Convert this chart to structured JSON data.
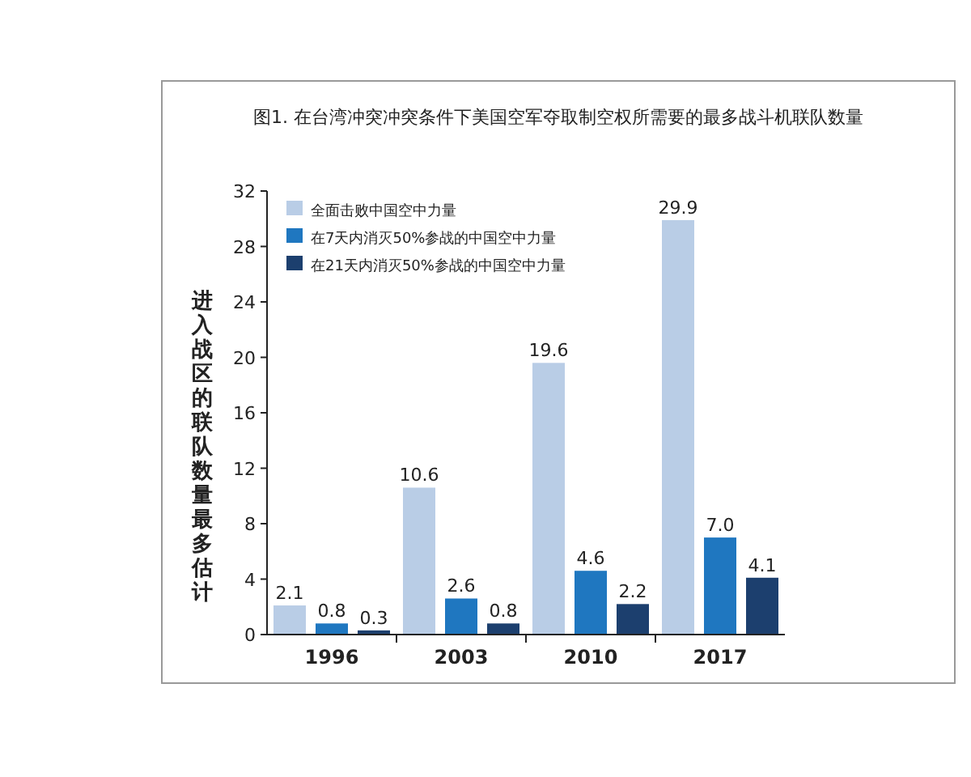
{
  "chart_data": {
    "type": "bar",
    "title": "图1. 在台湾冲突冲突条件下美国空军夺取制空权所需要的最多战斗机联队数量",
    "ylabel": "进入战区的联队数量最多估计",
    "categories": [
      "1996",
      "2003",
      "2010",
      "2017"
    ],
    "series": [
      {
        "name": "全面击败中国空中力量",
        "color": "#b9cde6",
        "values": [
          2.1,
          10.6,
          19.6,
          29.9
        ],
        "value_labels": [
          "2.1",
          "10.6",
          "19.6",
          "29.9"
        ]
      },
      {
        "name": "在7天内消灭50%参战的中国空中力量",
        "color": "#1f77c0",
        "values": [
          0.8,
          2.6,
          4.6,
          7.0
        ],
        "value_labels": [
          "0.8",
          "2.6",
          "4.6",
          "7.0"
        ]
      },
      {
        "name": "在21天内消灭50%参战的中国空中力量",
        "color": "#1c3f6e",
        "values": [
          0.3,
          0.8,
          2.2,
          4.1
        ],
        "value_labels": [
          "0.3",
          "0.8",
          "2.2",
          "4.1"
        ]
      }
    ],
    "ylim": [
      0,
      32
    ],
    "yticks": [
      0,
      4,
      8,
      12,
      16,
      20,
      24,
      28,
      32
    ],
    "legend": "top left",
    "grid": false
  }
}
